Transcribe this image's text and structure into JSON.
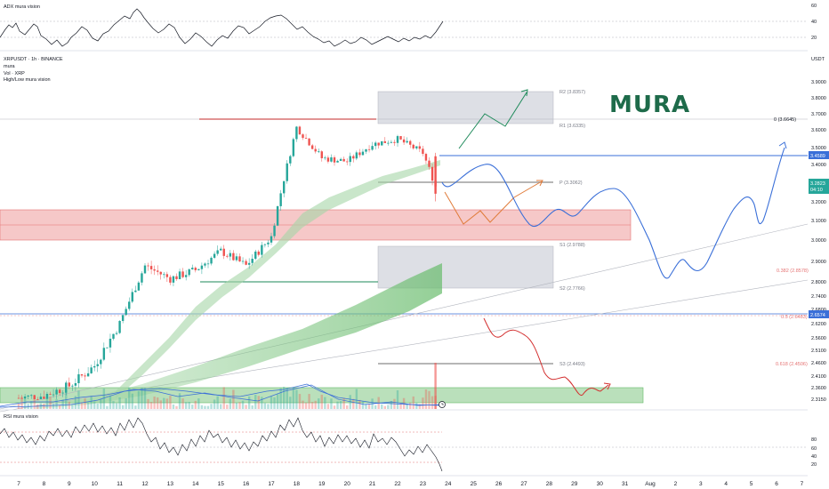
{
  "adx_panel": {
    "title": "ADX mura vision",
    "ticks": [
      "60",
      "40",
      "20"
    ]
  },
  "main_header": {
    "symbol_line": "XRPUSDT · 1h · BINANCE",
    "indicators": [
      "mura",
      "Vol · XRP",
      "High/Low mura vision"
    ]
  },
  "currency": "USDT",
  "brand_text": "MURA",
  "price_axis": {
    "ticks": [
      "3.9000",
      "3.8000",
      "3.7000",
      "3.6000",
      "3.5000",
      "3.4000",
      "3.3000",
      "3.2000",
      "3.1000",
      "3.0000",
      "2.9000",
      "2.8000",
      "2.7400",
      "2.6800",
      "2.6200",
      "2.5600",
      "2.5100",
      "2.4600",
      "2.4100",
      "2.3600",
      "2.3150"
    ]
  },
  "price_tags": {
    "level_tag": "3.4589",
    "current_price": "3.2823",
    "countdown": "04:10",
    "low_tag": "2.6574"
  },
  "levels": {
    "r2": "R2 (3.8357)",
    "r1": "R1 (3.6335)",
    "fib0": "0 (3.6645)",
    "pivot": "P (3.3062)",
    "s1": "S1 (2.9788)",
    "fib382": "0.382 (2.8578)",
    "s2": "S2 (2.7766)",
    "fib5": "0.5 (2.6483)",
    "s3": "S3 (2.4493)",
    "fib618": "0.618 (2.4506)"
  },
  "rsi_panel": {
    "title": "RSI mura vision",
    "ticks": [
      "80",
      "60",
      "40",
      "20"
    ]
  },
  "time_axis": {
    "labels": [
      "7",
      "8",
      "9",
      "10",
      "11",
      "12",
      "13",
      "14",
      "15",
      "16",
      "17",
      "18",
      "19",
      "20",
      "21",
      "22",
      "23",
      "24",
      "25",
      "26",
      "27",
      "28",
      "29",
      "30",
      "31",
      "Aug",
      "2",
      "3",
      "4",
      "5",
      "6",
      "7"
    ]
  },
  "chart_data": {
    "type": "candlestick",
    "symbol": "XRPUSDT",
    "timeframe": "1h",
    "exchange": "BINANCE",
    "price_close_path": [
      {
        "x": "7",
        "y": 2.32
      },
      {
        "x": "8",
        "y": 2.33
      },
      {
        "x": "9",
        "y": 2.37
      },
      {
        "x": "10",
        "y": 2.45
      },
      {
        "x": "11",
        "y": 2.62
      },
      {
        "x": "12",
        "y": 2.88
      },
      {
        "x": "13",
        "y": 2.82
      },
      {
        "x": "14",
        "y": 2.86
      },
      {
        "x": "15",
        "y": 2.95
      },
      {
        "x": "16",
        "y": 2.88
      },
      {
        "x": "17",
        "y": 3.02
      },
      {
        "x": "18",
        "y": 3.62
      },
      {
        "x": "19",
        "y": 3.44
      },
      {
        "x": "20",
        "y": 3.42
      },
      {
        "x": "21",
        "y": 3.52
      },
      {
        "x": "22",
        "y": 3.55
      },
      {
        "x": "23",
        "y": 3.47
      },
      {
        "x": "23.5",
        "y": 3.28
      }
    ],
    "zones": [
      {
        "name": "resistance zone",
        "from": 3.63,
        "to": 3.84
      },
      {
        "name": "neutral zone",
        "from": 2.78,
        "to": 2.98
      },
      {
        "name": "supply zone",
        "from": 3.0,
        "to": 3.16
      },
      {
        "name": "demand zone",
        "from": 2.32,
        "to": 2.36
      }
    ],
    "projections": [
      {
        "name": "bullish",
        "color": "#1e8a5a",
        "path": [
          {
            "x": "24",
            "y": 3.48
          },
          {
            "x": "25.5",
            "y": 3.67
          },
          {
            "x": "26.5",
            "y": 3.62
          },
          {
            "x": "27",
            "y": 3.86
          }
        ]
      },
      {
        "name": "pivot",
        "color": "#e07b39",
        "path": [
          {
            "x": "24",
            "y": 3.22
          },
          {
            "x": "24.5",
            "y": 3.08
          },
          {
            "x": "25.5",
            "y": 3.14
          },
          {
            "x": "26",
            "y": 3.08
          },
          {
            "x": "27",
            "y": 3.3
          }
        ]
      },
      {
        "name": "main",
        "color": "#3a6fd8",
        "path": [
          {
            "x": "23.5",
            "y": 3.3
          },
          {
            "x": "24.5",
            "y": 3.42
          },
          {
            "x": "25.5",
            "y": 3.29
          },
          {
            "x": "26.5",
            "y": 3.09
          },
          {
            "x": "28",
            "y": 3.14
          },
          {
            "x": "29",
            "y": 3.26
          },
          {
            "x": "31",
            "y": 3.12
          },
          {
            "x": "Aug",
            "y": 2.82
          },
          {
            "x": "2",
            "y": 2.89
          },
          {
            "x": "3",
            "y": 2.82
          },
          {
            "x": "4",
            "y": 3.1
          },
          {
            "x": "4.5",
            "y": 3.26
          },
          {
            "x": "5",
            "y": 3.09
          },
          {
            "x": "6",
            "y": 3.5
          }
        ]
      },
      {
        "name": "bearish",
        "color": "#d32f2f",
        "path": [
          {
            "x": "24.5",
            "y": 2.62
          },
          {
            "x": "25",
            "y": 2.57
          },
          {
            "x": "26",
            "y": 2.59
          },
          {
            "x": "27",
            "y": 2.49
          },
          {
            "x": "28",
            "y": 2.38
          },
          {
            "x": "29",
            "y": 2.4
          },
          {
            "x": "29.5",
            "y": 2.37
          }
        ]
      }
    ],
    "colors": {
      "up": "#26a69a",
      "down": "#ef5350",
      "accent": "#2962ff",
      "brand": "#1e6b4a"
    }
  }
}
